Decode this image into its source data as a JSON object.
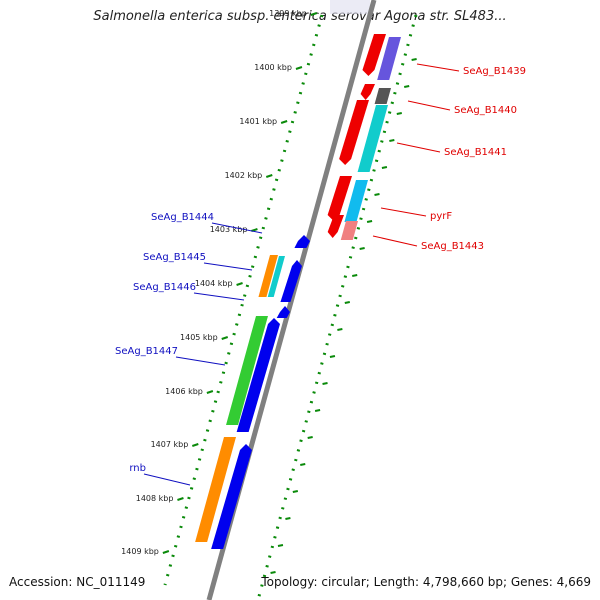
{
  "title": "Salmonella enterica subsp. enterica serovar Agona str. SL483...",
  "footer": {
    "accession": "Accession: NC_011149",
    "topology": "Topology: circular; Length: 4,798,660 bp; Genes: 4,669"
  },
  "ticks": [
    "1399 kbp",
    "1400 kbp",
    "1401 kbp",
    "1402 kbp",
    "1403 kbp",
    "1404 kbp",
    "1405 kbp",
    "1406 kbp",
    "1407 kbp",
    "1408 kbp",
    "1409 kbp"
  ],
  "labels_forward": [
    "SeAg_B1439",
    "SeAg_B1440",
    "SeAg_B1441",
    "pyrF",
    "SeAg_B1443"
  ],
  "labels_reverse": [
    "SeAg_B1444",
    "SeAg_B1445",
    "SeAg_B1446",
    "SeAg_B1447",
    "rnb"
  ],
  "colors": {
    "forward_label": "#e00000",
    "reverse_label": "#1010c0",
    "red": "#ee0000",
    "blue": "#0000ee",
    "green": "#33cc33",
    "orange": "#ff8c00",
    "cyan": "#11cccc",
    "purple": "#6655dd",
    "gray": "#555555",
    "skyblue": "#11bbee",
    "pink": "#f08080",
    "backbone": "#808080",
    "tick_green": "#0a8a0a"
  }
}
